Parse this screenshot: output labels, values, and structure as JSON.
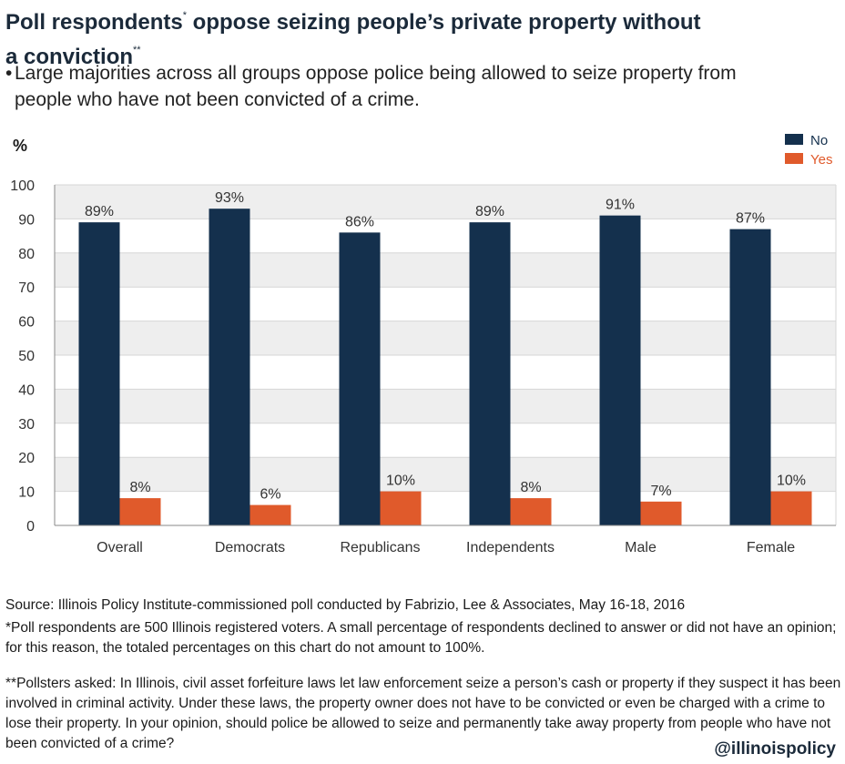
{
  "header": {
    "title_part1": "Poll respondents",
    "title_mark1": "*",
    "title_part2": " oppose seizing people’s private property without",
    "title_part3": "a conviction",
    "title_mark2": "**",
    "subtitle_bullet": "•",
    "subtitle_line1": "Large majorities across all groups oppose police being allowed to seize property from",
    "subtitle_line2": "people who have not been convicted of a crime."
  },
  "chart_data": {
    "type": "bar",
    "ylabel": "%",
    "ylim": [
      0,
      100
    ],
    "yticks": [
      0,
      10,
      20,
      30,
      40,
      50,
      60,
      70,
      80,
      90,
      100
    ],
    "grid": "alternating bands",
    "legend_position": "top-right",
    "categories": [
      "Overall",
      "Democrats",
      "Republicans",
      "Independents",
      "Male",
      "Female"
    ],
    "series": [
      {
        "name": "No",
        "color": "#14304d",
        "values": [
          89,
          93,
          86,
          89,
          91,
          87
        ],
        "labels": [
          "89%",
          "93%",
          "86%",
          "89%",
          "91%",
          "87%"
        ]
      },
      {
        "name": "Yes",
        "color": "#e05a2b",
        "values": [
          8,
          6,
          10,
          8,
          7,
          10
        ],
        "labels": [
          "8%",
          "6%",
          "10%",
          "8%",
          "7%",
          "10%"
        ]
      }
    ]
  },
  "footer": {
    "source": "Source: Illinois Policy Institute-commissioned poll conducted by Fabrizio, Lee & Associates, May 16-18, 2016",
    "note1": "*Poll respondents are 500 Illinois registered voters. A small percentage of respondents declined to answer or did not have an opinion; for this reason, the totaled percentages on this chart do not amount to 100%.",
    "note2": "**Pollsters asked: In Illinois, civil asset forfeiture laws let law enforcement seize a person’s cash or property if they suspect it has been involved in criminal activity. Under these laws, the property owner does not have to be convicted or even be charged with a crime to lose their property. In your opinion, should police be allowed to seize and permanently take away property from people who have not been convicted of a crime?",
    "handle": "@illinoispolicy"
  }
}
